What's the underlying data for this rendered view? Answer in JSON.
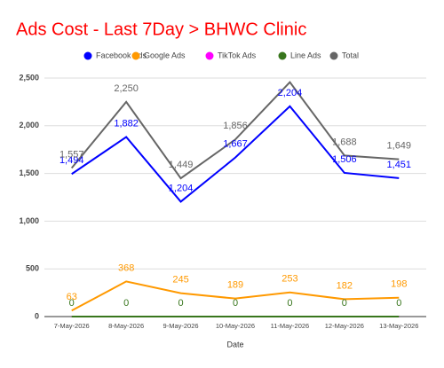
{
  "chart_data": {
    "type": "line",
    "title": "Ads Cost - Last 7Day > BHWC Clinic",
    "x_label": "Date",
    "categories": [
      "7-May-2026",
      "8-May-2026",
      "9-May-2026",
      "10-May-2026",
      "11-May-2026",
      "12-May-2026",
      "13-May-2026"
    ],
    "series": [
      {
        "name": "Facebook Ads",
        "color": "#0000ff",
        "values": [
          1494,
          1882,
          1204,
          1667,
          2204,
          1506,
          1451
        ],
        "value_labels": [
          "1,494",
          "1,882",
          "1,204",
          "1,667",
          "2,204",
          "1,506",
          "1,451"
        ]
      },
      {
        "name": "Google Ads",
        "color": "#ff9900",
        "values": [
          63,
          368,
          245,
          189,
          253,
          182,
          198
        ]
      },
      {
        "name": "TikTok Ads",
        "color": "#ff00ff",
        "values": [
          0,
          0,
          0,
          0,
          0,
          0,
          0
        ],
        "value_labels": [
          null,
          null,
          null,
          null,
          null,
          null,
          null
        ]
      },
      {
        "name": "Line Ads",
        "color": "#38761d",
        "values": [
          0,
          0,
          0,
          0,
          0,
          0,
          0
        ]
      },
      {
        "name": "Total",
        "color": "#666666",
        "values": [
          1557,
          2250,
          1449,
          1856,
          2457,
          1688,
          1649
        ],
        "value_labels": [
          "1,557",
          "2,250",
          "1,449",
          "1,856",
          null,
          "1,688",
          "1,649"
        ]
      }
    ],
    "ylim": [
      0,
      2500
    ],
    "yticks": [
      0,
      500,
      {
        "value": 1000,
        "label": "1,000"
      },
      {
        "value": 1500,
        "label": "1,500"
      },
      {
        "value": 2000,
        "label": "2,000"
      },
      {
        "value": 2500,
        "label": "2,500"
      }
    ],
    "grid": true,
    "legend": "top"
  }
}
